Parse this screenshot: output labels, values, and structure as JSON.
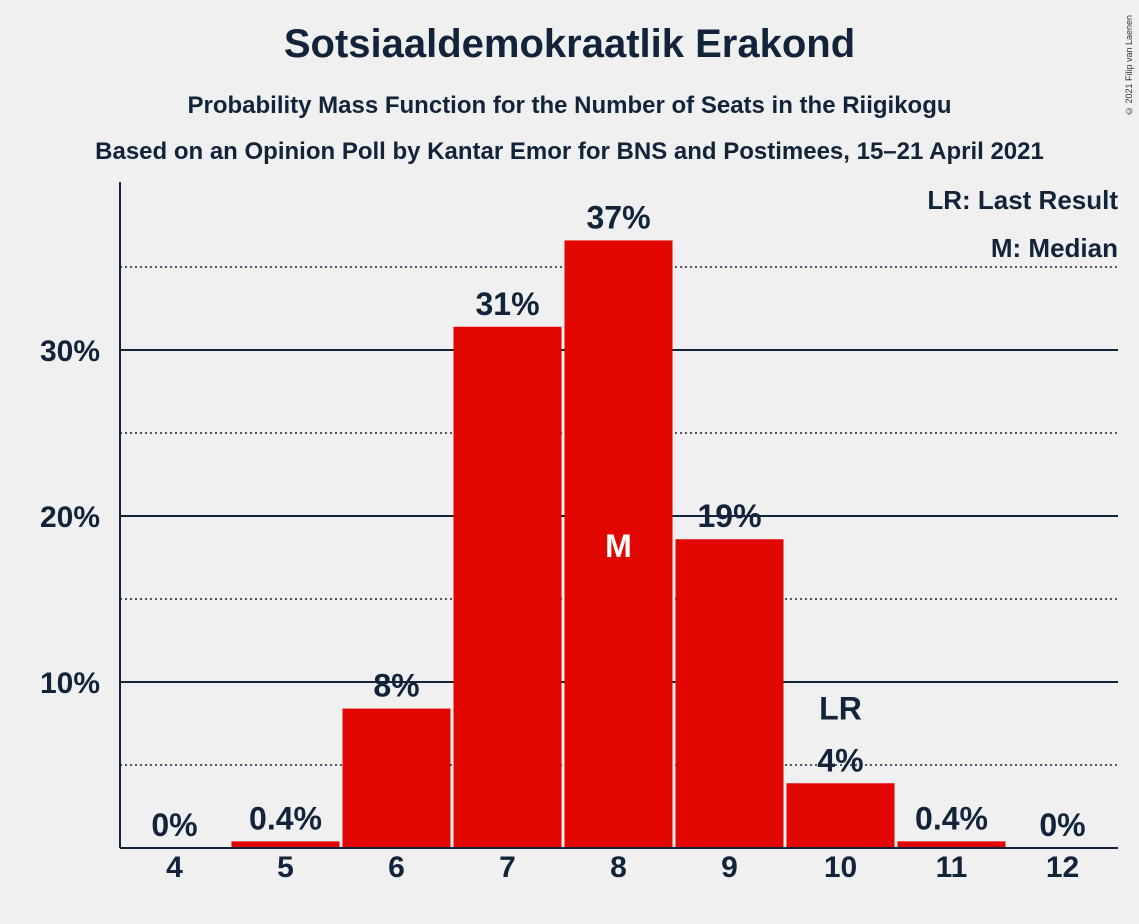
{
  "title": "Sotsiaaldemokraatlik Erakond",
  "subtitle": "Probability Mass Function for the Number of Seats in the Riigikogu",
  "subtitle2": "Based on an Opinion Poll by Kantar Emor for BNS and Postimees, 15–21 April 2021",
  "copyright": "© 2021 Filip van Laenen",
  "legend": {
    "last_result": "LR: Last Result",
    "median": "M: Median"
  },
  "colors": {
    "bar": "#e10600",
    "text": "#13233a",
    "background": "#f0f0f0"
  },
  "chart_data": {
    "type": "bar",
    "title": "Sotsiaaldemokraatlik Erakond",
    "categories": [
      "4",
      "5",
      "6",
      "7",
      "8",
      "9",
      "10",
      "11",
      "12"
    ],
    "values": [
      0,
      0.4,
      8.4,
      31.4,
      36.6,
      18.6,
      3.9,
      0.4,
      0
    ],
    "data_labels": [
      "0%",
      "0.4%",
      "8%",
      "31%",
      "37%",
      "19%",
      "4%",
      "0.4%",
      "0%"
    ],
    "ylim": [
      0,
      40
    ],
    "y_ticks": [
      10,
      20,
      30
    ],
    "y_tick_labels": [
      "10%",
      "20%",
      "30%"
    ],
    "gridlines_solid": [
      10,
      20,
      30
    ],
    "gridlines_dotted": [
      5,
      15,
      25,
      35
    ],
    "median_category": "8",
    "median_marker": "M",
    "last_result_category": "10",
    "last_result_marker": "LR",
    "legend_position": "top-right"
  }
}
